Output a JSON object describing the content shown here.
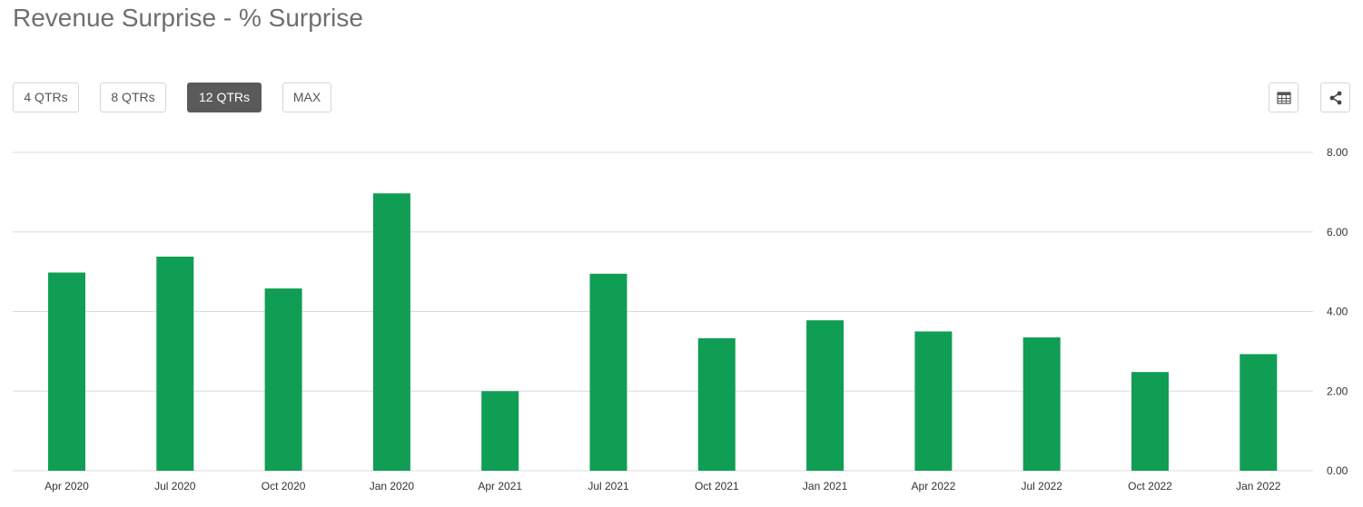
{
  "header": {
    "title": "Revenue Surprise - % Surprise"
  },
  "range_buttons": [
    {
      "label": "4 QTRs",
      "active": false
    },
    {
      "label": "8 QTRs",
      "active": false
    },
    {
      "label": "12 QTRs",
      "active": true
    },
    {
      "label": "MAX",
      "active": false
    }
  ],
  "tools": {
    "table_icon": "table-icon",
    "share_icon": "share-icon"
  },
  "colors": {
    "bar": "#109e55",
    "grid": "#dcdcdc",
    "active_button": "#5a5a5a"
  },
  "chart_data": {
    "type": "bar",
    "categories": [
      "Apr 2020",
      "Jul 2020",
      "Oct 2020",
      "Jan 2020",
      "Apr 2021",
      "Jul 2021",
      "Oct 2021",
      "Jan 2021",
      "Apr 2022",
      "Jul 2022",
      "Oct 2022",
      "Jan 2022"
    ],
    "values": [
      4.98,
      5.38,
      4.58,
      6.97,
      2.0,
      4.95,
      3.33,
      3.78,
      3.5,
      3.35,
      2.48,
      2.93
    ],
    "yticks": [
      "0.00",
      "2.00",
      "4.00",
      "6.00",
      "8.00"
    ],
    "ylim": [
      0,
      8
    ],
    "y_axis_position": "right",
    "grid": true
  }
}
